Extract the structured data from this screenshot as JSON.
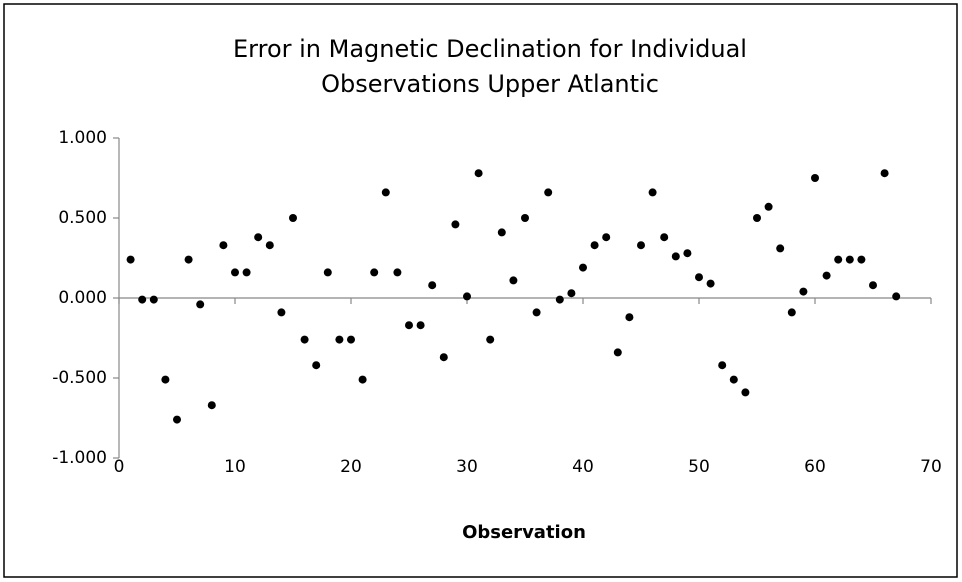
{
  "chart_data": {
    "type": "scatter",
    "title": [
      "Error in Magnetic Declination for Individual",
      "Observations Upper Atlantic"
    ],
    "x_label": "Observation",
    "x": [
      1,
      2,
      3,
      4,
      5,
      6,
      7,
      8,
      9,
      10,
      11,
      12,
      13,
      14,
      15,
      16,
      17,
      18,
      19,
      20,
      21,
      22,
      23,
      24,
      25,
      26,
      27,
      28,
      29,
      30,
      31,
      32,
      33,
      34,
      35,
      36,
      37,
      38,
      39,
      40,
      41,
      42,
      43,
      44,
      45,
      46,
      47,
      48,
      49,
      50,
      51,
      52,
      53,
      54,
      55,
      56,
      57,
      58,
      59,
      60,
      61,
      62,
      63,
      64,
      65,
      66,
      67
    ],
    "values": [
      0.24,
      -0.01,
      -0.01,
      -0.51,
      -0.76,
      0.24,
      -0.04,
      -0.67,
      0.33,
      0.16,
      0.16,
      0.38,
      0.33,
      -0.09,
      0.5,
      -0.26,
      -0.42,
      0.16,
      -0.26,
      -0.26,
      -0.51,
      0.16,
      0.66,
      0.16,
      -0.17,
      -0.17,
      0.08,
      -0.37,
      0.46,
      0.01,
      0.78,
      -0.26,
      0.41,
      0.11,
      0.5,
      -0.09,
      0.66,
      -0.01,
      0.03,
      0.19,
      0.33,
      0.38,
      -0.34,
      -0.12,
      0.33,
      0.66,
      0.38,
      0.26,
      0.28,
      0.13,
      0.09,
      -0.42,
      -0.51,
      -0.59,
      0.5,
      0.57,
      0.31,
      -0.09,
      0.04,
      0.75,
      0.14,
      0.24,
      0.24,
      0.24,
      0.08,
      0.78,
      0.01
    ],
    "color": "#000000",
    "xlim": [
      0,
      70
    ],
    "xticks": [
      0,
      10,
      20,
      30,
      40,
      50,
      60,
      70
    ],
    "ylim": [
      -1,
      1
    ],
    "yticks": [
      {
        "value": -1,
        "label": "-1.000"
      },
      {
        "value": -0.5,
        "label": "-0.500"
      },
      {
        "value": 0,
        "label": "0.000"
      },
      {
        "value": 0.5,
        "label": "0.500"
      },
      {
        "value": 1,
        "label": "1.000"
      }
    ],
    "grid": false
  }
}
